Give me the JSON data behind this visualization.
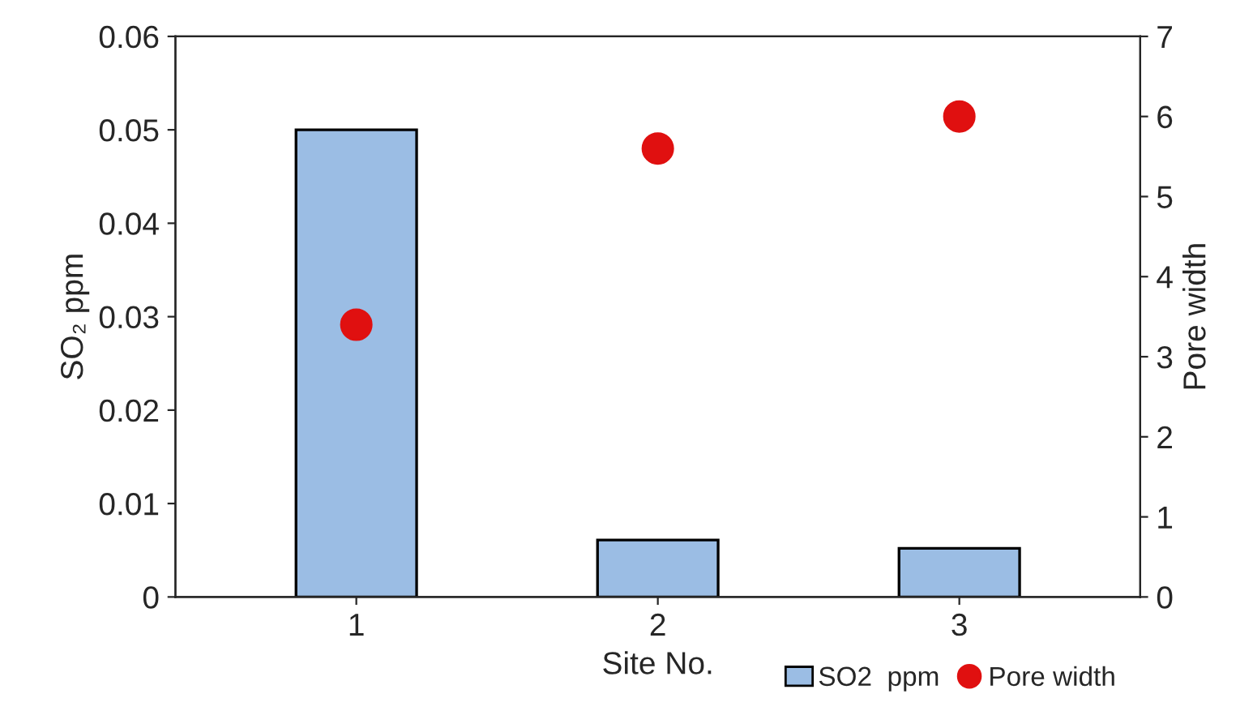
{
  "chart_data": {
    "type": "bar",
    "xlabel": "Site No.",
    "ylabel": "SO₂ ppm",
    "y2label": "Pore width",
    "categories": [
      "1",
      "2",
      "3"
    ],
    "series": [
      {
        "name": "SO2  ppm",
        "color": "#9bbde4",
        "values": [
          0.05,
          0.0061,
          0.0052
        ]
      },
      {
        "name": "Pore width",
        "type": "scatter",
        "axis": "y2",
        "color": "#e01010",
        "marker": "circle",
        "values": [
          3.4,
          5.6,
          6.0
        ]
      }
    ],
    "ylim": [
      0,
      0.06
    ],
    "yticks": [
      {
        "value": 0,
        "label": "0"
      },
      0.01,
      0.02,
      0.03,
      0.04,
      0.05,
      0.06
    ],
    "y2lim": [
      0,
      7
    ],
    "y2ticks": [
      0,
      1,
      2,
      3,
      4,
      5,
      6,
      7
    ],
    "legend": "bottom right",
    "grid": false
  }
}
